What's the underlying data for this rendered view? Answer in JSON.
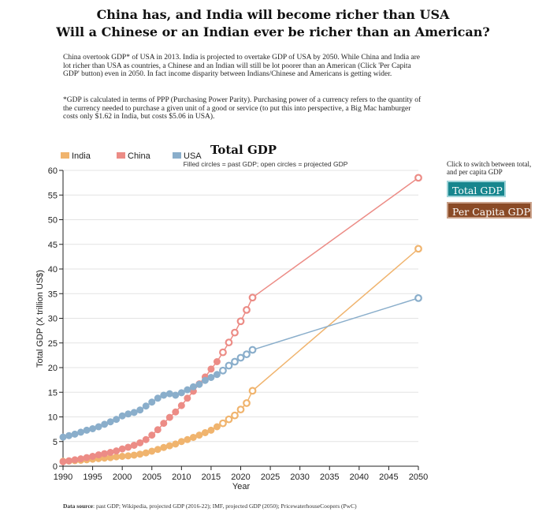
{
  "header": {
    "title_line1": "China has, and India will become richer than USA",
    "title_line2": "Will a Chinese or an Indian ever be richer than an American?"
  },
  "intro": {
    "paragraph": "China overtook GDP* of USA in 2013. India is projected to overtake GDP of USA by 2050. While China and India are lot richer than USA as countries, a Chinese and an Indian will still be lot poorer than an American (Click 'Per Capita GDP' button) even in 2050. In fact income disparity between Indians/Chinese and Americans is getting wider.",
    "note": "*GDP is calculated in terms of PPP (Purchasing Power Parity). Purchasing power of a currency refers to the quantity of the currency needed to purchase a given unit of a good or service (to put this into perspective, a Big Mac hamburger costs only $1.62 in India, but costs $5.06 in USA)."
  },
  "controls": {
    "hint": "Click to switch between total, and per capita GDP",
    "total_label": "Total GDP",
    "per_capita_label": "Per Capita GDP",
    "total_color": "#17868e",
    "per_capita_color": "#8a4a26"
  },
  "footer": {
    "source_label": "Data source",
    "source_text": ": past GDP; Wikipedia, projected GDP (2016-22); IMF, projected GDP (2050); PricewaterhouseCoopers (PwC)"
  },
  "chart_data": {
    "type": "line",
    "title": "Total GDP",
    "subtitle": "Filled circles = past GDP; open circles = projected GDP",
    "xlabel": "Year",
    "ylabel": "Total GDP (X trillion US$)",
    "xlim": [
      1990,
      2050
    ],
    "ylim": [
      0,
      60
    ],
    "xticks": [
      1990,
      1995,
      2000,
      2005,
      2010,
      2015,
      2020,
      2025,
      2030,
      2035,
      2040,
      2045,
      2050
    ],
    "yticks": [
      0,
      5,
      10,
      15,
      20,
      25,
      30,
      35,
      40,
      45,
      50,
      55,
      60
    ],
    "grid": "horizontal",
    "legend_position": "top-left",
    "past_until": 2016,
    "series": [
      {
        "name": "India",
        "color": "#f0b46e",
        "x": [
          1990,
          1991,
          1992,
          1993,
          1994,
          1995,
          1996,
          1997,
          1998,
          1999,
          2000,
          2001,
          2002,
          2003,
          2004,
          2005,
          2006,
          2007,
          2008,
          2009,
          2010,
          2011,
          2012,
          2013,
          2014,
          2015,
          2016,
          2017,
          2018,
          2019,
          2020,
          2021,
          2022,
          2050
        ],
        "y": [
          1.0,
          1.05,
          1.12,
          1.2,
          1.3,
          1.42,
          1.55,
          1.65,
          1.75,
          1.9,
          2.0,
          2.1,
          2.25,
          2.45,
          2.7,
          3.05,
          3.4,
          3.8,
          4.15,
          4.5,
          5.0,
          5.4,
          5.85,
          6.3,
          6.8,
          7.3,
          8.0,
          8.7,
          9.5,
          10.3,
          11.5,
          12.8,
          15.3,
          44.1
        ]
      },
      {
        "name": "China",
        "color": "#ec8c86",
        "x": [
          1990,
          1991,
          1992,
          1993,
          1994,
          1995,
          1996,
          1997,
          1998,
          1999,
          2000,
          2001,
          2002,
          2003,
          2004,
          2005,
          2006,
          2007,
          2008,
          2009,
          2010,
          2011,
          2012,
          2013,
          2014,
          2015,
          2016,
          2017,
          2018,
          2019,
          2020,
          2021,
          2022,
          2050
        ],
        "y": [
          0.9,
          1.1,
          1.3,
          1.5,
          1.75,
          2.0,
          2.3,
          2.55,
          2.8,
          3.1,
          3.5,
          3.85,
          4.25,
          4.75,
          5.4,
          6.3,
          7.4,
          8.7,
          9.9,
          11.0,
          12.3,
          13.8,
          15.2,
          16.7,
          18.1,
          19.7,
          21.2,
          23.1,
          25.1,
          27.1,
          29.4,
          31.7,
          34.2,
          58.5
        ]
      },
      {
        "name": "USA",
        "color": "#8aaecb",
        "x": [
          1990,
          1991,
          1992,
          1993,
          1994,
          1995,
          1996,
          1997,
          1998,
          1999,
          2000,
          2001,
          2002,
          2003,
          2004,
          2005,
          2006,
          2007,
          2008,
          2009,
          2010,
          2011,
          2012,
          2013,
          2014,
          2015,
          2016,
          2017,
          2018,
          2019,
          2020,
          2021,
          2022,
          2050
        ],
        "y": [
          5.9,
          6.2,
          6.5,
          6.9,
          7.3,
          7.6,
          8.0,
          8.5,
          9.0,
          9.5,
          10.2,
          10.6,
          10.9,
          11.4,
          12.2,
          13.0,
          13.8,
          14.4,
          14.7,
          14.4,
          14.9,
          15.5,
          16.1,
          16.6,
          17.4,
          18.0,
          18.6,
          19.4,
          20.4,
          21.2,
          22.0,
          22.7,
          23.6,
          34.1
        ]
      }
    ]
  }
}
